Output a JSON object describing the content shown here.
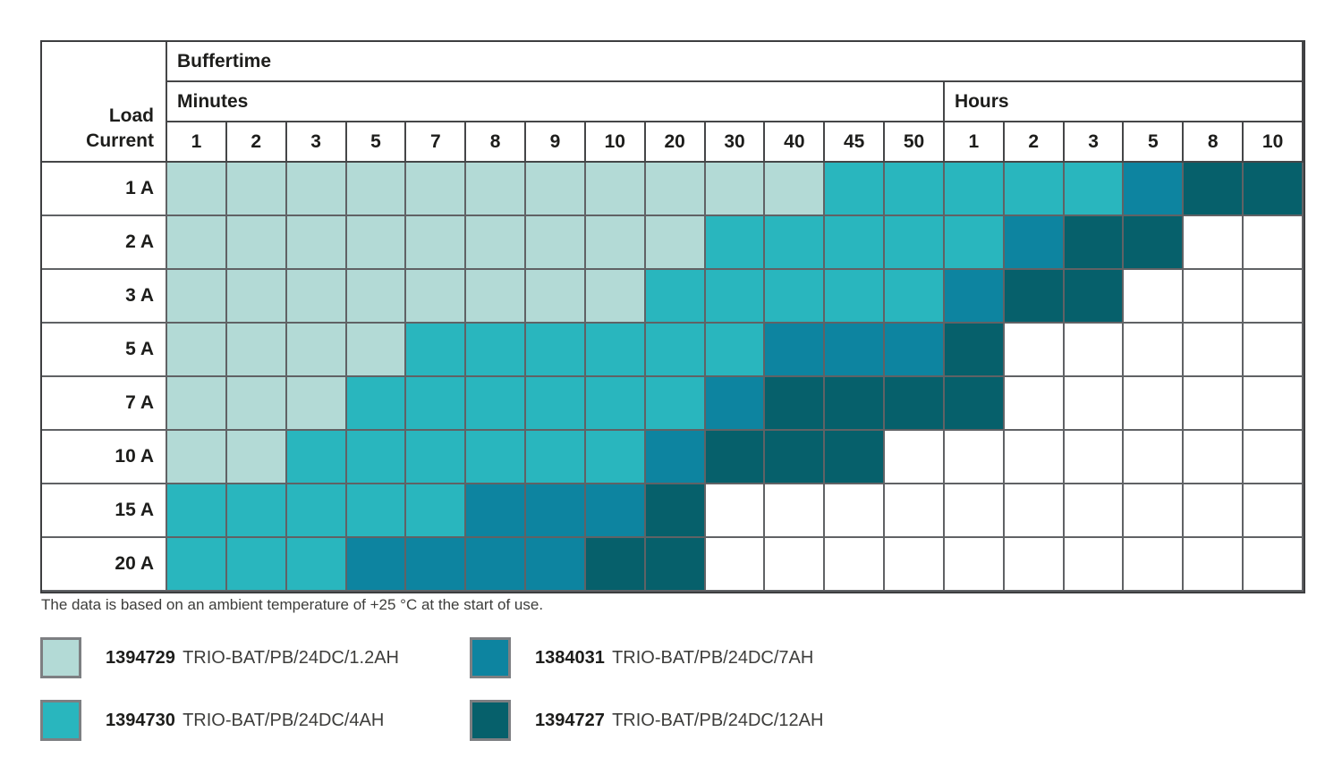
{
  "colors": {
    "1.2AH": "#b3dad6",
    "4AH": "#29b6be",
    "7AH": "#0d84a0",
    "12AH": "#06606b",
    "empty": "#ffffff",
    "grid_line": "#606265",
    "text_dark": "#1d1d1b",
    "text_note": "#3d3d3b"
  },
  "chart_data": {
    "type": "heatmap",
    "title": "Buffertime",
    "x_axis": {
      "groups": [
        {
          "label": "Minutes",
          "ticks": [
            "1",
            "2",
            "3",
            "5",
            "7",
            "8",
            "9",
            "10",
            "20",
            "30",
            "40",
            "45",
            "50"
          ]
        },
        {
          "label": "Hours",
          "ticks": [
            "1",
            "2",
            "3",
            "5",
            "8",
            "10"
          ]
        }
      ]
    },
    "y_axis": {
      "label_line1": "Load",
      "label_line2": "Current",
      "ticks": [
        "1 A",
        "2 A",
        "3 A",
        "5 A",
        "7 A",
        "10 A",
        "15 A",
        "20 A"
      ]
    },
    "matrix": [
      [
        "1.2AH",
        "1.2AH",
        "1.2AH",
        "1.2AH",
        "1.2AH",
        "1.2AH",
        "1.2AH",
        "1.2AH",
        "1.2AH",
        "1.2AH",
        "1.2AH",
        "4AH",
        "4AH",
        "4AH",
        "4AH",
        "4AH",
        "7AH",
        "12AH",
        "12AH"
      ],
      [
        "1.2AH",
        "1.2AH",
        "1.2AH",
        "1.2AH",
        "1.2AH",
        "1.2AH",
        "1.2AH",
        "1.2AH",
        "1.2AH",
        "4AH",
        "4AH",
        "4AH",
        "4AH",
        "4AH",
        "7AH",
        "12AH",
        "12AH",
        null,
        null
      ],
      [
        "1.2AH",
        "1.2AH",
        "1.2AH",
        "1.2AH",
        "1.2AH",
        "1.2AH",
        "1.2AH",
        "1.2AH",
        "4AH",
        "4AH",
        "4AH",
        "4AH",
        "4AH",
        "7AH",
        "12AH",
        "12AH",
        null,
        null,
        null
      ],
      [
        "1.2AH",
        "1.2AH",
        "1.2AH",
        "1.2AH",
        "4AH",
        "4AH",
        "4AH",
        "4AH",
        "4AH",
        "4AH",
        "7AH",
        "7AH",
        "7AH",
        "12AH",
        null,
        null,
        null,
        null,
        null
      ],
      [
        "1.2AH",
        "1.2AH",
        "1.2AH",
        "4AH",
        "4AH",
        "4AH",
        "4AH",
        "4AH",
        "4AH",
        "7AH",
        "12AH",
        "12AH",
        "12AH",
        "12AH",
        null,
        null,
        null,
        null,
        null
      ],
      [
        "1.2AH",
        "1.2AH",
        "4AH",
        "4AH",
        "4AH",
        "4AH",
        "4AH",
        "4AH",
        "7AH",
        "12AH",
        "12AH",
        "12AH",
        null,
        null,
        null,
        null,
        null,
        null,
        null
      ],
      [
        "4AH",
        "4AH",
        "4AH",
        "4AH",
        "4AH",
        "7AH",
        "7AH",
        "7AH",
        "12AH",
        null,
        null,
        null,
        null,
        null,
        null,
        null,
        null,
        null,
        null
      ],
      [
        "4AH",
        "4AH",
        "4AH",
        "7AH",
        "7AH",
        "7AH",
        "7AH",
        "12AH",
        "12AH",
        null,
        null,
        null,
        null,
        null,
        null,
        null,
        null,
        null,
        null
      ]
    ],
    "note": "The data is based on an ambient temperature of +25 °C at the start of use.",
    "legend": [
      {
        "order_no": "1394729",
        "name": "TRIO-BAT/PB/24DC/1.2AH",
        "key": "1.2AH"
      },
      {
        "order_no": "1384031",
        "name": "TRIO-BAT/PB/24DC/7AH",
        "key": "7AH"
      },
      {
        "order_no": "1394730",
        "name": "TRIO-BAT/PB/24DC/4AH",
        "key": "4AH"
      },
      {
        "order_no": "1394727",
        "name": "TRIO-BAT/PB/24DC/12AH",
        "key": "12AH"
      }
    ],
    "legend_layout": "2 columns, row-major"
  }
}
